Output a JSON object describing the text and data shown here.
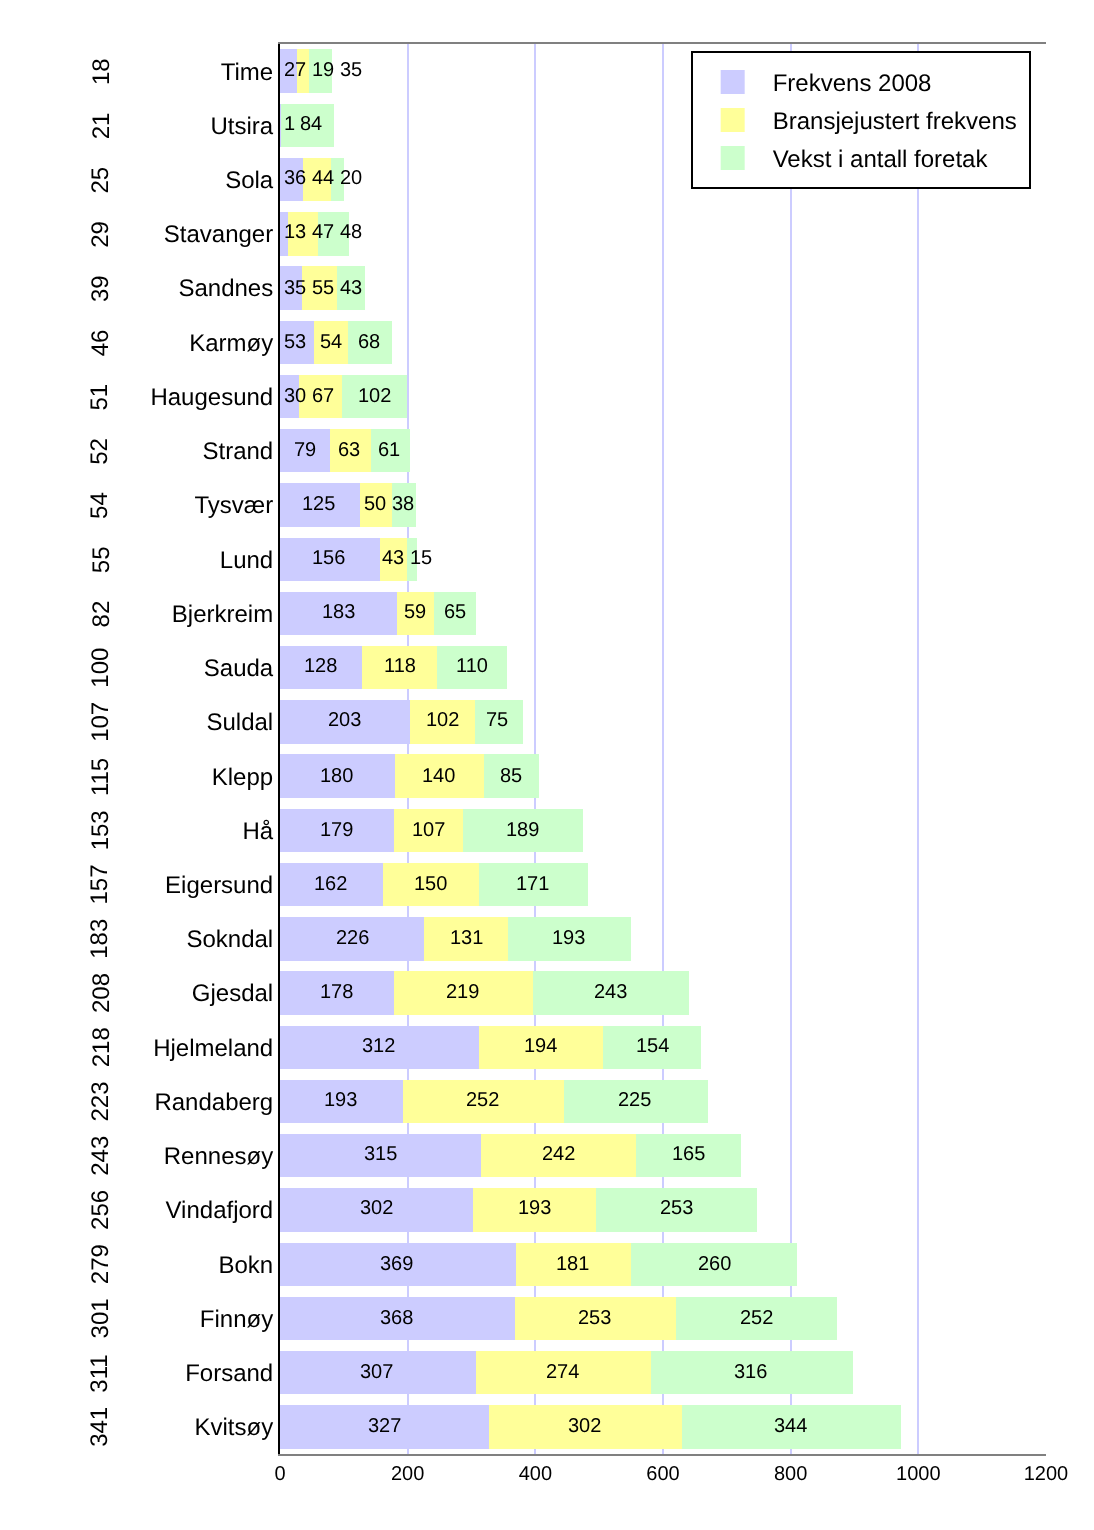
{
  "chart_data": {
    "type": "bar",
    "orientation": "horizontal",
    "stacked": true,
    "data_labels": true,
    "grid": "x",
    "legend": "top right",
    "categories": [
      "Time",
      "Utsira",
      "Sola",
      "Stavanger",
      "Sandnes",
      "Karmøy",
      "Haugesund",
      "Strand",
      "Tysvær",
      "Lund",
      "Bjerkreim",
      "Sauda",
      "Suldal",
      "Klepp",
      "Hå",
      "Eigersund",
      "Sokndal",
      "Gjesdal",
      "Hjelmeland",
      "Randaberg",
      "Rennesøy",
      "Vindafjord",
      "Bokn",
      "Finnøy",
      "Forsand",
      "Kvitsøy"
    ],
    "y2_categories": [
      "18",
      "21",
      "25",
      "29",
      "39",
      "46",
      "51",
      "52",
      "54",
      "55",
      "82",
      "100",
      "107",
      "115",
      "153",
      "157",
      "183",
      "208",
      "218",
      "223",
      "243",
      "256",
      "279",
      "301",
      "311",
      "341"
    ],
    "series": [
      {
        "name": "Frekvens 2008",
        "color": "#ccccff",
        "values": [
          27,
          1,
          36,
          13,
          35,
          53,
          30,
          79,
          125,
          156,
          183,
          128,
          203,
          180,
          179,
          162,
          226,
          178,
          312,
          193,
          315,
          302,
          369,
          368,
          307,
          327
        ]
      },
      {
        "name": "Bransjejustert frekvens",
        "color": "#ffff99",
        "values": [
          19,
          null,
          44,
          47,
          55,
          54,
          67,
          63,
          50,
          43,
          59,
          118,
          102,
          140,
          107,
          150,
          131,
          219,
          194,
          252,
          242,
          193,
          181,
          253,
          274,
          302
        ]
      },
      {
        "name": "Vekst i antall foretak",
        "color": "#ccffcc",
        "values": [
          35,
          84,
          20,
          48,
          43,
          68,
          102,
          61,
          38,
          15,
          65,
          110,
          75,
          85,
          189,
          171,
          193,
          243,
          154,
          225,
          165,
          253,
          260,
          252,
          316,
          344
        ]
      }
    ],
    "xlim": [
      0,
      1200
    ],
    "xticks": [
      0,
      200,
      400,
      600,
      800,
      1000,
      1200
    ]
  }
}
